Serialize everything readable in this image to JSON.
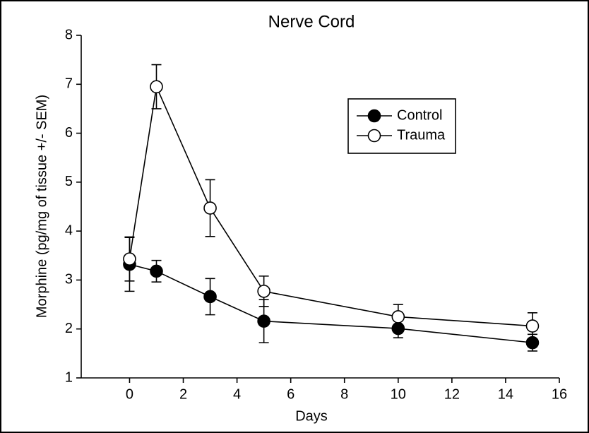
{
  "chart_data": {
    "type": "line",
    "title": "Nerve Cord",
    "x_label": "Days",
    "y_label": "Morphine (pg/mg of tissue +/- SEM)",
    "x": [
      0,
      1,
      3,
      5,
      10,
      15
    ],
    "series": [
      {
        "name": "Control",
        "color": "#000000",
        "values": [
          3.32,
          3.18,
          2.66,
          2.16,
          2.01,
          1.72
        ],
        "errors": [
          0.55,
          0.22,
          0.37,
          0.44,
          0.19,
          0.17
        ]
      },
      {
        "name": "Trauma",
        "color": "#ffffff",
        "values": [
          3.43,
          6.95,
          4.47,
          2.77,
          2.25,
          2.06
        ],
        "errors": [
          0.45,
          0.45,
          0.58,
          0.31,
          0.25,
          0.27
        ]
      }
    ],
    "xlim": [
      -1.8,
      16
    ],
    "xticks": [
      0,
      2,
      4,
      6,
      8,
      10,
      12,
      14,
      16
    ],
    "ylim": [
      1,
      8
    ],
    "yticks": [
      1,
      2,
      3,
      4,
      5,
      6,
      7,
      8
    ]
  }
}
